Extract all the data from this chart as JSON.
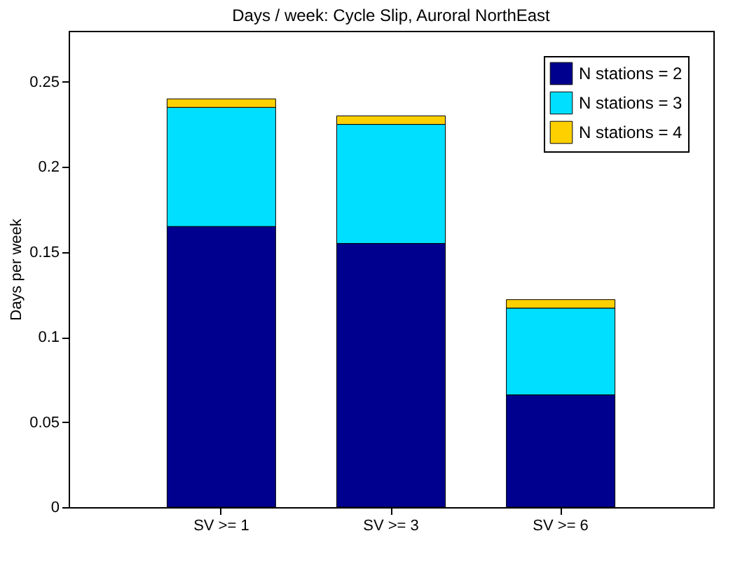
{
  "chart_data": {
    "type": "bar",
    "title": "Days / week: Cycle Slip, Auroral NorthEast",
    "ylabel": "Days per week",
    "categories": [
      "SV >= 1",
      "SV >= 3",
      "SV >= 6"
    ],
    "stacked": true,
    "series": [
      {
        "name": "N stations = 2",
        "color": "#00008f",
        "values": [
          0.165,
          0.155,
          0.066
        ]
      },
      {
        "name": "N stations = 3",
        "color": "#00dfff",
        "values": [
          0.07,
          0.07,
          0.051
        ]
      },
      {
        "name": "N stations = 4",
        "color": "#ffd000",
        "values": [
          0.005,
          0.005,
          0.005
        ]
      }
    ],
    "ylim": [
      0,
      0.28
    ],
    "yticks": [
      0,
      0.05,
      0.1,
      0.15,
      0.2,
      0.25
    ],
    "legend": "top right",
    "grid": false
  }
}
